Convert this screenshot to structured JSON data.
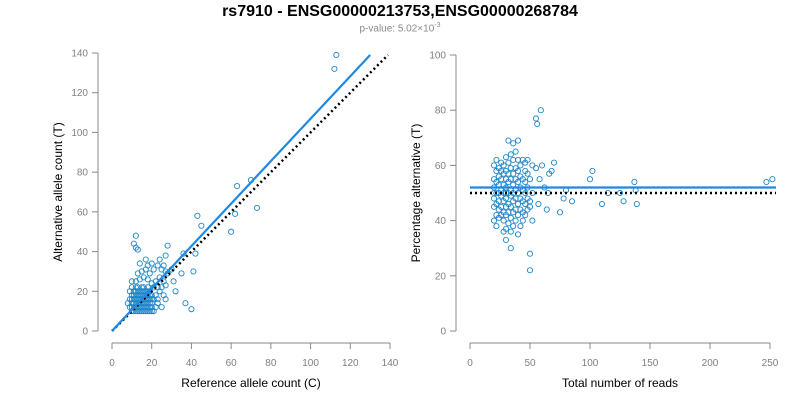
{
  "title": "rs7910 - ENSG00000213753,ENSG00000268784",
  "subtitle_prefix": "p-value: 5.02×10",
  "subtitle_exponent": "-3",
  "colors": {
    "points": "#1f86c8",
    "fit": "#1e88e5",
    "reference": "#000000",
    "axis": "#888888"
  },
  "chart_data": [
    {
      "type": "scatter",
      "xlabel": "Reference allele count (C)",
      "ylabel": "Alternative allele count (T)",
      "xlim": [
        0,
        140
      ],
      "ylim": [
        0,
        140
      ],
      "xticks": [
        0,
        20,
        40,
        60,
        80,
        100,
        120,
        140
      ],
      "yticks": [
        0,
        20,
        40,
        60,
        80,
        100,
        120,
        140
      ],
      "regression_line": {
        "x": [
          0,
          130
        ],
        "y": [
          0,
          139
        ]
      },
      "reference_line": {
        "x": [
          0,
          139
        ],
        "y": [
          0,
          139
        ]
      },
      "points": [
        [
          10,
          10
        ],
        [
          11,
          10
        ],
        [
          12,
          10
        ],
        [
          13,
          10
        ],
        [
          14,
          10
        ],
        [
          15,
          10
        ],
        [
          16,
          10
        ],
        [
          17,
          10
        ],
        [
          18,
          10
        ],
        [
          19,
          10
        ],
        [
          20,
          10
        ],
        [
          10,
          12
        ],
        [
          11,
          12
        ],
        [
          12,
          12
        ],
        [
          13,
          12
        ],
        [
          14,
          12
        ],
        [
          15,
          12
        ],
        [
          16,
          12
        ],
        [
          17,
          12
        ],
        [
          18,
          12
        ],
        [
          19,
          12
        ],
        [
          20,
          12
        ],
        [
          10,
          14
        ],
        [
          11,
          14
        ],
        [
          12,
          14
        ],
        [
          13,
          14
        ],
        [
          14,
          14
        ],
        [
          15,
          14
        ],
        [
          16,
          14
        ],
        [
          17,
          14
        ],
        [
          18,
          14
        ],
        [
          19,
          14
        ],
        [
          20,
          14
        ],
        [
          10,
          16
        ],
        [
          11,
          16
        ],
        [
          12,
          16
        ],
        [
          13,
          16
        ],
        [
          14,
          16
        ],
        [
          15,
          16
        ],
        [
          16,
          16
        ],
        [
          17,
          16
        ],
        [
          18,
          16
        ],
        [
          19,
          16
        ],
        [
          20,
          16
        ],
        [
          10,
          18
        ],
        [
          11,
          18
        ],
        [
          12,
          18
        ],
        [
          13,
          18
        ],
        [
          14,
          18
        ],
        [
          15,
          18
        ],
        [
          16,
          18
        ],
        [
          17,
          18
        ],
        [
          18,
          18
        ],
        [
          19,
          18
        ],
        [
          20,
          18
        ],
        [
          11,
          20
        ],
        [
          12,
          20
        ],
        [
          13,
          20
        ],
        [
          14,
          20
        ],
        [
          15,
          20
        ],
        [
          16,
          20
        ],
        [
          17,
          20
        ],
        [
          18,
          20
        ],
        [
          19,
          20
        ],
        [
          12,
          22
        ],
        [
          13,
          22
        ],
        [
          15,
          22
        ],
        [
          16,
          22
        ],
        [
          18,
          22
        ],
        [
          10,
          22
        ],
        [
          9,
          20
        ],
        [
          9,
          16
        ],
        [
          9,
          12
        ],
        [
          8,
          14
        ],
        [
          21,
          10
        ],
        [
          22,
          12
        ],
        [
          23,
          14
        ],
        [
          21,
          16
        ],
        [
          22,
          18
        ],
        [
          24,
          20
        ],
        [
          21,
          22
        ],
        [
          23,
          22
        ],
        [
          25,
          22
        ],
        [
          10,
          25
        ],
        [
          12,
          25
        ],
        [
          14,
          26
        ],
        [
          16,
          27
        ],
        [
          18,
          26
        ],
        [
          20,
          24
        ],
        [
          22,
          25
        ],
        [
          24,
          27
        ],
        [
          26,
          25
        ],
        [
          27,
          23
        ],
        [
          13,
          29
        ],
        [
          15,
          30
        ],
        [
          17,
          31
        ],
        [
          19,
          29
        ],
        [
          21,
          31
        ],
        [
          23,
          33
        ],
        [
          25,
          31
        ],
        [
          20,
          34
        ],
        [
          18,
          33
        ],
        [
          17,
          36
        ],
        [
          24,
          36
        ],
        [
          26,
          33
        ],
        [
          27,
          30
        ],
        [
          28,
          29
        ],
        [
          30,
          31
        ],
        [
          27,
          38
        ],
        [
          28,
          43
        ],
        [
          26,
          18
        ],
        [
          27,
          16
        ],
        [
          23,
          16
        ],
        [
          25,
          12
        ],
        [
          12,
          42
        ],
        [
          13,
          41
        ],
        [
          11,
          44
        ],
        [
          12,
          48
        ],
        [
          14,
          34
        ],
        [
          31,
          25
        ],
        [
          32,
          20
        ],
        [
          35,
          29
        ],
        [
          36,
          39
        ],
        [
          37,
          14
        ],
        [
          40,
          11
        ],
        [
          41,
          30
        ],
        [
          42,
          39
        ],
        [
          43,
          58
        ],
        [
          45,
          53
        ],
        [
          60,
          50
        ],
        [
          62,
          59
        ],
        [
          63,
          73
        ],
        [
          70,
          76
        ],
        [
          73,
          62
        ],
        [
          112,
          132
        ],
        [
          113,
          139
        ]
      ]
    },
    {
      "type": "scatter",
      "xlabel": "Total number of reads",
      "ylabel": "Percentage alternative (T)",
      "xlim": [
        0,
        250
      ],
      "ylim": [
        0,
        100
      ],
      "xticks": [
        0,
        50,
        100,
        150,
        200,
        250
      ],
      "yticks": [
        0,
        20,
        40,
        60,
        80,
        100
      ],
      "regression_line": {
        "x": [
          0,
          255
        ],
        "y": [
          52,
          52
        ]
      },
      "reference_line": {
        "x": [
          0,
          255
        ],
        "y": [
          50,
          50
        ]
      },
      "points": [
        [
          20,
          50
        ],
        [
          20,
          52
        ],
        [
          20,
          48
        ],
        [
          20,
          55
        ],
        [
          20,
          45
        ],
        [
          20,
          60
        ],
        [
          20,
          40
        ],
        [
          22,
          50
        ],
        [
          22,
          46
        ],
        [
          22,
          54
        ],
        [
          22,
          58
        ],
        [
          22,
          42
        ],
        [
          22,
          62
        ],
        [
          22,
          38
        ],
        [
          24,
          50
        ],
        [
          24,
          53
        ],
        [
          24,
          47
        ],
        [
          24,
          56
        ],
        [
          24,
          44
        ],
        [
          24,
          59
        ],
        [
          24,
          41
        ],
        [
          26,
          51
        ],
        [
          26,
          49
        ],
        [
          26,
          55
        ],
        [
          26,
          45
        ],
        [
          26,
          58
        ],
        [
          26,
          42
        ],
        [
          26,
          61
        ],
        [
          28,
          50
        ],
        [
          28,
          53
        ],
        [
          28,
          47
        ],
        [
          28,
          57
        ],
        [
          28,
          43
        ],
        [
          28,
          60
        ],
        [
          28,
          40
        ],
        [
          28,
          36
        ],
        [
          30,
          50
        ],
        [
          30,
          52
        ],
        [
          30,
          48
        ],
        [
          30,
          55
        ],
        [
          30,
          45
        ],
        [
          30,
          58
        ],
        [
          30,
          42
        ],
        [
          30,
          63
        ],
        [
          30,
          37
        ],
        [
          30,
          33
        ],
        [
          32,
          50
        ],
        [
          32,
          54
        ],
        [
          32,
          46
        ],
        [
          32,
          57
        ],
        [
          32,
          43
        ],
        [
          32,
          61
        ],
        [
          32,
          39
        ],
        [
          32,
          69
        ],
        [
          34,
          51
        ],
        [
          34,
          49
        ],
        [
          34,
          55
        ],
        [
          34,
          45
        ],
        [
          34,
          59
        ],
        [
          34,
          41
        ],
        [
          34,
          64
        ],
        [
          34,
          36
        ],
        [
          34,
          30
        ],
        [
          36,
          50
        ],
        [
          36,
          53
        ],
        [
          36,
          47
        ],
        [
          36,
          57
        ],
        [
          36,
          43
        ],
        [
          36,
          62
        ],
        [
          36,
          38
        ],
        [
          36,
          68
        ],
        [
          38,
          51
        ],
        [
          38,
          48
        ],
        [
          38,
          55
        ],
        [
          38,
          44
        ],
        [
          38,
          59
        ],
        [
          38,
          40
        ],
        [
          38,
          65
        ],
        [
          40,
          50
        ],
        [
          40,
          54
        ],
        [
          40,
          46
        ],
        [
          40,
          58
        ],
        [
          40,
          42
        ],
        [
          40,
          62
        ],
        [
          40,
          35
        ],
        [
          40,
          69
        ],
        [
          42,
          52
        ],
        [
          42,
          48
        ],
        [
          42,
          56
        ],
        [
          42,
          44
        ],
        [
          42,
          60
        ],
        [
          42,
          38
        ],
        [
          44,
          51
        ],
        [
          44,
          47
        ],
        [
          44,
          55
        ],
        [
          44,
          43
        ],
        [
          44,
          62
        ],
        [
          44,
          40
        ],
        [
          46,
          50
        ],
        [
          46,
          54
        ],
        [
          46,
          46
        ],
        [
          46,
          58
        ],
        [
          46,
          42
        ],
        [
          46,
          61
        ],
        [
          48,
          52
        ],
        [
          48,
          48
        ],
        [
          48,
          57
        ],
        [
          48,
          44
        ],
        [
          48,
          62
        ],
        [
          50,
          55
        ],
        [
          50,
          45
        ],
        [
          50,
          47
        ],
        [
          50,
          28
        ],
        [
          50,
          22
        ],
        [
          52,
          60
        ],
        [
          52,
          50
        ],
        [
          52,
          40
        ],
        [
          55,
          59
        ],
        [
          55,
          77
        ],
        [
          56,
          75
        ],
        [
          57,
          46
        ],
        [
          58,
          55
        ],
        [
          59,
          80
        ],
        [
          60,
          60
        ],
        [
          62,
          52
        ],
        [
          64,
          44
        ],
        [
          65,
          50
        ],
        [
          66,
          57
        ],
        [
          68,
          58
        ],
        [
          70,
          61
        ],
        [
          75,
          43
        ],
        [
          78,
          48
        ],
        [
          80,
          51
        ],
        [
          85,
          47
        ],
        [
          100,
          55
        ],
        [
          102,
          58
        ],
        [
          110,
          46
        ],
        [
          115,
          50
        ],
        [
          125,
          50
        ],
        [
          128,
          47
        ],
        [
          137,
          54
        ],
        [
          138,
          51
        ],
        [
          139,
          46
        ],
        [
          247,
          54
        ],
        [
          252,
          55
        ]
      ]
    }
  ]
}
